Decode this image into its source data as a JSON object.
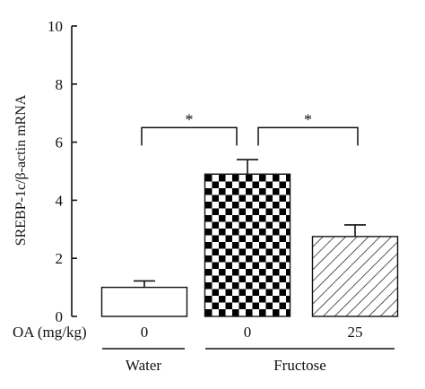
{
  "chart_data": {
    "type": "bar",
    "ylabel": "SREBP-1c/β-actin mRNA",
    "ylim": [
      0,
      10
    ],
    "yticks": [
      0,
      2,
      4,
      6,
      8,
      10
    ],
    "grid": false,
    "bars": [
      {
        "id": "water",
        "oa_dose": "0",
        "group": "Water",
        "value": 1.0,
        "error": 0.22,
        "pattern": "solid",
        "fill": "#ffffff"
      },
      {
        "id": "fructose-0",
        "oa_dose": "0",
        "group": "Fructose",
        "value": 4.9,
        "error": 0.5,
        "pattern": "checkerboard",
        "fill": "#000000"
      },
      {
        "id": "fructose-25",
        "oa_dose": "25",
        "group": "Fructose",
        "value": 2.75,
        "error": 0.4,
        "pattern": "diagonal-hatch",
        "fill": "#ffffff"
      }
    ],
    "x_row_label": "OA (mg/kg)",
    "groups": [
      "Water",
      "Fructose"
    ],
    "significance": [
      {
        "from": "water",
        "to": "fructose-0",
        "label": "*"
      },
      {
        "from": "fructose-0",
        "to": "fructose-25",
        "label": "*"
      }
    ]
  }
}
